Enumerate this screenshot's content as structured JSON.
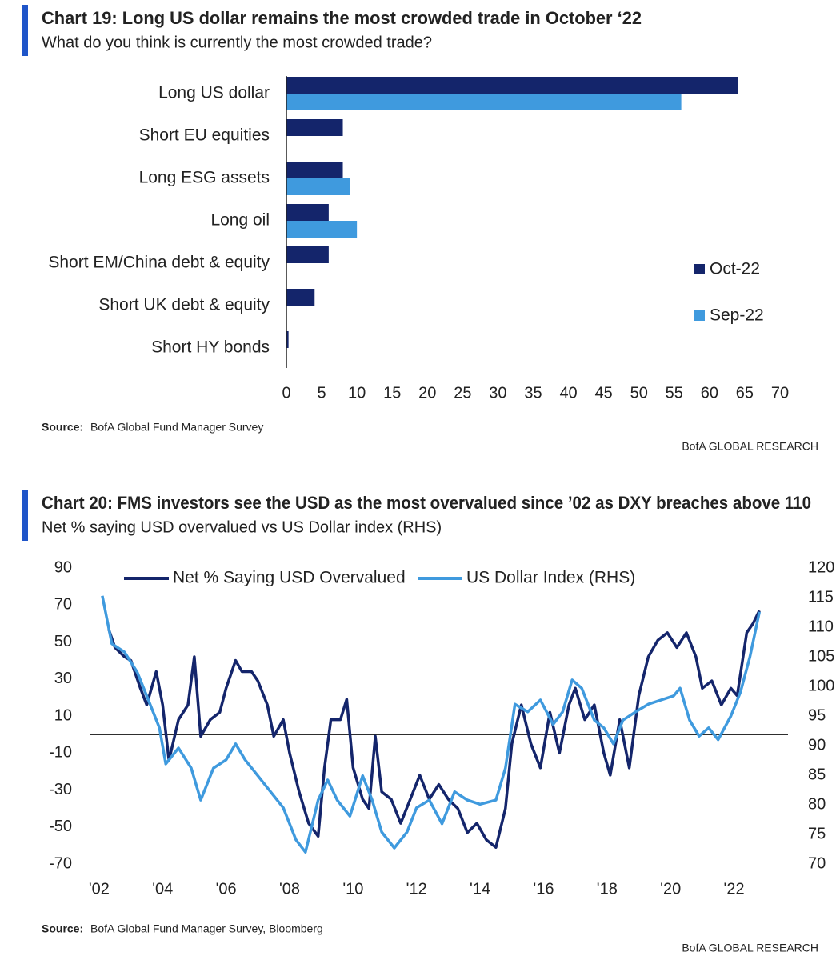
{
  "chart_data": [
    {
      "type": "bar",
      "orientation": "horizontal",
      "title": "Chart 19: Long US dollar remains the most crowded trade in October ‘22",
      "subtitle": "What do you think is currently the most crowded trade?",
      "categories": [
        "Long US dollar",
        "Short EU equities",
        "Long ESG assets",
        "Long oil",
        "Short EM/China debt & equity",
        "Short UK debt & equity",
        "Short HY bonds"
      ],
      "series": [
        {
          "name": "Oct-22",
          "color": "#14256b",
          "values": [
            64,
            8,
            8,
            6,
            6,
            4,
            0.3
          ]
        },
        {
          "name": "Sep-22",
          "color": "#3f9ade",
          "values": [
            56,
            null,
            9,
            10,
            null,
            null,
            null
          ]
        }
      ],
      "xlim": [
        0,
        70
      ],
      "xticks": [
        0,
        5,
        10,
        15,
        20,
        25,
        30,
        35,
        40,
        45,
        50,
        55,
        60,
        65,
        70
      ],
      "legend": "right",
      "source_label": "Source:",
      "source": "BofA Global Fund Manager Survey",
      "branding": "BofA GLOBAL RESEARCH"
    },
    {
      "type": "line",
      "title": "Chart 20: FMS investors see the USD as the most overvalued since ’02 as DXY breaches above 110",
      "subtitle": "Net % saying USD overvalued vs US Dollar index (RHS)",
      "series": [
        {
          "name": "Net % Saying USD Overvalued",
          "color": "#14256b",
          "x": [
            2002.3,
            2002.5,
            2002.8,
            2003.0,
            2003.3,
            2003.5,
            2003.8,
            2004.0,
            2004.2,
            2004.5,
            2004.8,
            2005.0,
            2005.2,
            2005.5,
            2005.8,
            2006.0,
            2006.3,
            2006.5,
            2006.8,
            2007.0,
            2007.3,
            2007.5,
            2007.8,
            2008.0,
            2008.3,
            2008.6,
            2008.9,
            2009.1,
            2009.3,
            2009.6,
            2009.8,
            2010.0,
            2010.3,
            2010.5,
            2010.7,
            2010.9,
            2011.2,
            2011.5,
            2011.8,
            2012.1,
            2012.4,
            2012.7,
            2013.0,
            2013.3,
            2013.6,
            2013.9,
            2014.2,
            2014.5,
            2014.8,
            2015.0,
            2015.3,
            2015.6,
            2015.9,
            2016.2,
            2016.5,
            2016.8,
            2017.0,
            2017.3,
            2017.6,
            2017.9,
            2018.1,
            2018.4,
            2018.7,
            2019.0,
            2019.3,
            2019.6,
            2019.9,
            2020.2,
            2020.5,
            2020.8,
            2021.0,
            2021.3,
            2021.6,
            2021.9,
            2022.1,
            2022.4,
            2022.6,
            2022.8
          ],
          "values": [
            57,
            47,
            42,
            40,
            25,
            16,
            34,
            16,
            -14,
            8,
            16,
            42,
            -1,
            8,
            12,
            25,
            40,
            34,
            34,
            29,
            16,
            -1,
            8,
            -10,
            -31,
            -48,
            -55,
            -18,
            8,
            8,
            19,
            -18,
            -35,
            -40,
            -1,
            -31,
            -35,
            -48,
            -35,
            -22,
            -35,
            -27,
            -35,
            -40,
            -53,
            -48,
            -57,
            -61,
            -40,
            -5,
            16,
            -5,
            -18,
            12,
            -10,
            16,
            25,
            8,
            16,
            -10,
            -22,
            8,
            -18,
            21,
            42,
            51,
            55,
            47,
            55,
            42,
            25,
            29,
            16,
            25,
            21,
            55,
            60,
            67
          ]
        },
        {
          "name": "US Dollar Index (RHS)",
          "color": "#3f9ade",
          "axis": "y2",
          "x": [
            2002.1,
            2002.4,
            2002.8,
            2003.2,
            2003.5,
            2003.9,
            2004.1,
            2004.5,
            2004.9,
            2005.2,
            2005.6,
            2006.0,
            2006.3,
            2006.6,
            2007.0,
            2007.4,
            2007.8,
            2008.2,
            2008.5,
            2008.9,
            2009.2,
            2009.5,
            2009.9,
            2010.3,
            2010.6,
            2010.9,
            2011.3,
            2011.7,
            2012.0,
            2012.4,
            2012.8,
            2013.2,
            2013.6,
            2014.0,
            2014.5,
            2014.8,
            2015.1,
            2015.5,
            2015.9,
            2016.3,
            2016.6,
            2016.9,
            2017.2,
            2017.6,
            2017.9,
            2018.2,
            2018.5,
            2018.9,
            2019.3,
            2019.7,
            2020.1,
            2020.3,
            2020.6,
            2020.9,
            2021.2,
            2021.5,
            2021.9,
            2022.2,
            2022.5,
            2022.8
          ],
          "values": [
            115.3,
            107.2,
            105.8,
            102.4,
            98.4,
            93,
            86.9,
            89.6,
            86.2,
            80.8,
            86.2,
            87.6,
            90.3,
            87.6,
            84.9,
            82.2,
            79.5,
            74.1,
            72,
            80.8,
            84.2,
            80.8,
            78.1,
            84.9,
            80.8,
            75.4,
            72.7,
            75.4,
            79.5,
            80.8,
            76.8,
            82.2,
            80.8,
            80.1,
            80.8,
            86.2,
            97,
            95.7,
            97.7,
            93.6,
            95.7,
            101.1,
            99.7,
            94.3,
            93,
            90.3,
            94.3,
            95.7,
            97,
            97.7,
            98.4,
            99.7,
            94.3,
            91.6,
            93,
            91,
            95,
            99,
            105,
            112.6
          ]
        }
      ],
      "xlim": [
        2001.7,
        2023.7
      ],
      "xticks": [
        {
          "value": 2002,
          "label": "'02"
        },
        {
          "value": 2004,
          "label": "'04"
        },
        {
          "value": 2006,
          "label": "'06"
        },
        {
          "value": 2008,
          "label": "'08"
        },
        {
          "value": 2010,
          "label": "'10"
        },
        {
          "value": 2012,
          "label": "'12"
        },
        {
          "value": 2014,
          "label": "'14"
        },
        {
          "value": 2016,
          "label": "'16"
        },
        {
          "value": 2018,
          "label": "'18"
        },
        {
          "value": 2020,
          "label": "'20"
        },
        {
          "value": 2022,
          "label": "'22"
        }
      ],
      "ylim": [
        -70,
        90
      ],
      "yticks": [
        -70,
        -50,
        -30,
        -10,
        10,
        30,
        50,
        70,
        90
      ],
      "y2lim": [
        70,
        120
      ],
      "y2ticks": [
        70,
        75,
        80,
        85,
        90,
        95,
        100,
        105,
        110,
        115,
        120
      ],
      "reference_line": 0,
      "legend": "top",
      "source_label": "Source:",
      "source": "BofA Global Fund Manager Survey, Bloomberg",
      "branding": "BofA GLOBAL RESEARCH"
    }
  ]
}
